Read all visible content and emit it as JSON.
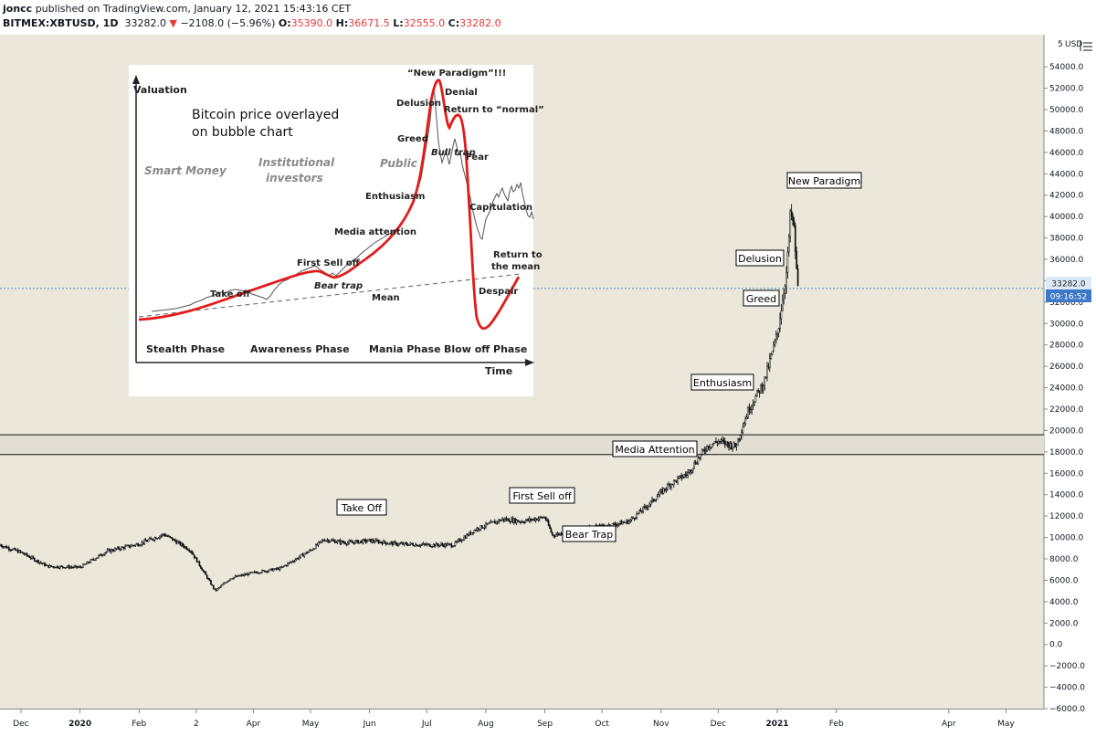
{
  "header": {
    "author": "joncc",
    "published": "published on TradingView.com, January 12, 2021 15:43:16 CET",
    "symbol": "BITMEX:XBTUSD, 1D",
    "price": "33282.0",
    "arrow": "▼",
    "change": "−2108.0 (−5.96%)",
    "o_label": "O:",
    "o_value": "35390.0",
    "h_label": "H:",
    "h_value": "36671.5",
    "l_label": "L:",
    "l_value": "32555.0",
    "c_label": "C:",
    "c_value": "33282.0"
  },
  "price_axis": {
    "currency": "USD",
    "top_label": "5",
    "current_price": "33282.0",
    "countdown": "09:16:52"
  },
  "inset": {
    "ylabel": "Valuation",
    "xlabel": "Time",
    "title_line1": "Bitcoin price overlayed",
    "title_line2": "on bubble chart",
    "groups": [
      "Smart Money",
      "Institutional",
      "investors",
      "Public"
    ],
    "phases": [
      "Stealth Phase",
      "Awareness Phase",
      "Mania Phase",
      "Blow off Phase"
    ],
    "labels": [
      "“New Paradigm”!!!",
      "Delusion",
      "Denial",
      "Return to “normal”",
      "Greed",
      "Bull trap",
      "Fear",
      "Enthusiasm",
      "Capitulation",
      "Media attention",
      "Return to",
      "the mean",
      "First Sell off",
      "Take off",
      "Bear trap",
      "Despair",
      "Mean"
    ]
  },
  "annotations": [
    "New Paradigm",
    "Delusion",
    "Greed",
    "Enthusiasm",
    "Media Attention",
    "First Sell off",
    "Bear Trap",
    "Take Off"
  ],
  "chart_data": {
    "type": "line",
    "title": "BITMEX:XBTUSD, 1D",
    "series": [
      {
        "name": "XBTUSD",
        "x": [
          "2019-11-20",
          "2019-12-01",
          "2019-12-15",
          "2020-01-01",
          "2020-01-15",
          "2020-02-01",
          "2020-02-14",
          "2020-02-28",
          "2020-03-12",
          "2020-03-20",
          "2020-04-01",
          "2020-04-15",
          "2020-05-01",
          "2020-05-08",
          "2020-05-20",
          "2020-06-01",
          "2020-06-15",
          "2020-07-01",
          "2020-07-15",
          "2020-07-27",
          "2020-08-10",
          "2020-08-20",
          "2020-09-01",
          "2020-09-05",
          "2020-09-20",
          "2020-10-01",
          "2020-10-15",
          "2020-10-25",
          "2020-11-05",
          "2020-11-15",
          "2020-11-25",
          "2020-12-01",
          "2020-12-10",
          "2020-12-17",
          "2020-12-25",
          "2021-01-01",
          "2021-01-06",
          "2021-01-08",
          "2021-01-10",
          "2021-01-11",
          "2021-01-12"
        ],
        "y": [
          9300,
          8600,
          7300,
          7200,
          8700,
          9400,
          10300,
          8800,
          5000,
          6200,
          6700,
          7100,
          8800,
          9800,
          9500,
          9700,
          9400,
          9300,
          9300,
          10800,
          11700,
          11500,
          11900,
          10200,
          10800,
          11000,
          11500,
          13000,
          14900,
          16000,
          18500,
          19000,
          18500,
          22000,
          24500,
          29000,
          35000,
          40500,
          38500,
          35000,
          33282
        ]
      }
    ],
    "ylim": [
      -6000,
      54000
    ],
    "price_ticks": [
      54000,
      52000,
      50000,
      48000,
      46000,
      44000,
      42000,
      40000,
      38000,
      36000,
      34000,
      32000,
      30000,
      28000,
      26000,
      24000,
      22000,
      20000,
      18000,
      16000,
      14000,
      12000,
      10000,
      8000,
      6000,
      4000,
      2000,
      0,
      -2000,
      -4000,
      -6000
    ],
    "price_tick_labels": [
      "54000.0",
      "52000.0",
      "50000.0",
      "48000.0",
      "46000.0",
      "44000.0",
      "42000.0",
      "40000.0",
      "38000.0",
      "36000.0",
      "34000.0",
      "32000.0",
      "30000.0",
      "28000.0",
      "26000.0",
      "24000.0",
      "22000.0",
      "20000.0",
      "18000.0",
      "16000.0",
      "14000.0",
      "12000.0",
      "10000.0",
      "8000.0",
      "6000.0",
      "4000.0",
      "2000.0",
      "0.0",
      "−2000.0",
      "−4000.0",
      "−6000.0"
    ],
    "time_ticks": [
      {
        "label": "Dec",
        "date": "2019-12-01"
      },
      {
        "label": "2020",
        "date": "2020-01-01"
      },
      {
        "label": "Feb",
        "date": "2020-02-01"
      },
      {
        "label": "2",
        "date": "2020-03-02"
      },
      {
        "label": "Apr",
        "date": "2020-04-01"
      },
      {
        "label": "May",
        "date": "2020-05-01"
      },
      {
        "label": "Jun",
        "date": "2020-06-01"
      },
      {
        "label": "Jul",
        "date": "2020-07-01"
      },
      {
        "label": "Aug",
        "date": "2020-08-01"
      },
      {
        "label": "Sep",
        "date": "2020-09-01"
      },
      {
        "label": "Oct",
        "date": "2020-10-01"
      },
      {
        "label": "Nov",
        "date": "2020-11-01"
      },
      {
        "label": "Dec",
        "date": "2020-12-01"
      },
      {
        "label": "2021",
        "date": "2021-01-01"
      },
      {
        "label": "Feb",
        "date": "2021-02-01"
      },
      {
        "label": "Apr",
        "date": "2021-04-01"
      },
      {
        "label": "May",
        "date": "2021-05-01"
      }
    ],
    "horizontal_lines": [
      19600,
      17750
    ],
    "current_price": 33282,
    "annotations": [
      {
        "text": "New Paradigm",
        "date": "2021-01-08",
        "value": 42000
      },
      {
        "text": "Delusion",
        "date": "2020-12-31",
        "value": 38000
      },
      {
        "text": "Greed",
        "date": "2021-01-01",
        "value": 34500
      },
      {
        "text": "Enthusiasm",
        "date": "2020-12-10",
        "value": 23500
      },
      {
        "text": "Media Attention",
        "date": "2020-11-10",
        "value": 18600
      },
      {
        "text": "First Sell off",
        "date": "2020-08-25",
        "value": 12800
      },
      {
        "text": "Bear Trap",
        "date": "2020-09-10",
        "value": 9500
      },
      {
        "text": "Take Off",
        "date": "2020-05-15",
        "value": 11500
      }
    ]
  }
}
